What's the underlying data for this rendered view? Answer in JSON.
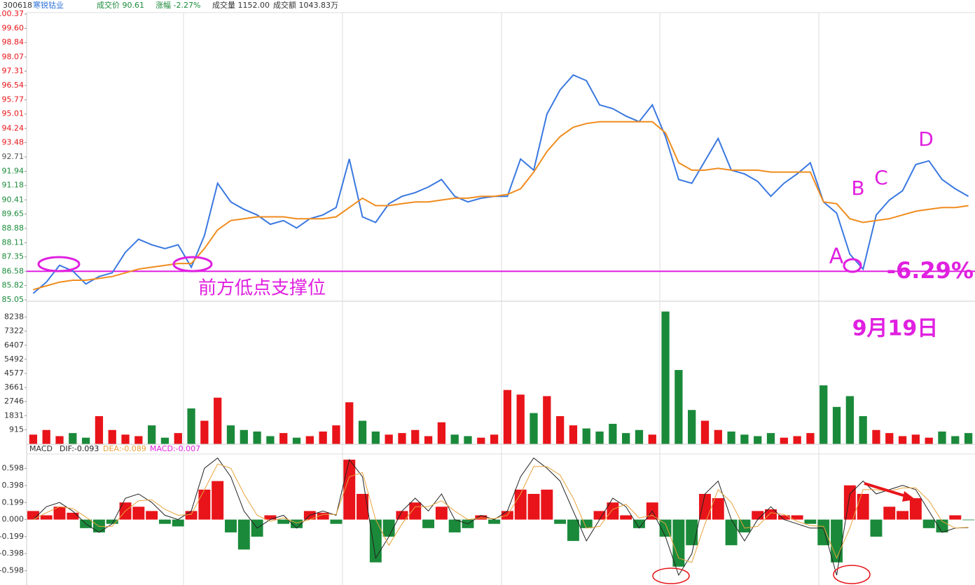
{
  "header": [
    "300618",
    "寒锐钴业",
    "成交价 90.61",
    "涨幅 -2.27%",
    "成交量 1152.00",
    "成交额 1043.83万"
  ],
  "chart_data": [
    {
      "type": "line",
      "ylim": [
        85.05,
        100.37
      ],
      "yticks": [
        100.37,
        {
          "value": 99.6,
          "label": "99.60"
        },
        98.84,
        98.07,
        97.31,
        96.54,
        95.77,
        95.01,
        94.24,
        93.48,
        92.71,
        91.94,
        91.18,
        90.41,
        89.65,
        88.88,
        88.11,
        87.35,
        86.58,
        85.82,
        85.05
      ],
      "support_level": 86.58,
      "annotations": [
        "前方低点支撑位",
        "A",
        "B",
        "C",
        "D",
        "-6.29%",
        "9月19日"
      ],
      "series": [
        {
          "color": "#3a78e0",
          "values": [
            85.4,
            86.0,
            86.9,
            86.6,
            85.9,
            86.3,
            86.5,
            87.6,
            88.3,
            88.0,
            87.8,
            88.0,
            86.8,
            88.5,
            91.3,
            90.3,
            89.9,
            89.6,
            89.1,
            89.3,
            88.9,
            89.4,
            89.6,
            90.0,
            92.6,
            89.5,
            89.2,
            90.2,
            90.6,
            90.8,
            91.1,
            91.5,
            90.6,
            90.3,
            90.5,
            90.6,
            90.6,
            92.6,
            92.0,
            95.0,
            96.3,
            97.1,
            96.8,
            95.5,
            95.3,
            94.9,
            94.6,
            95.5,
            93.8,
            91.5,
            91.3,
            92.5,
            93.7,
            92.0,
            91.8,
            91.4,
            90.6,
            91.3,
            91.8,
            92.4,
            90.3,
            89.7,
            87.5,
            86.7,
            89.6,
            90.4,
            90.9,
            92.3,
            92.5,
            91.5,
            91.0,
            90.6
          ]
        },
        {
          "color": "#f08c1e",
          "values": [
            85.6,
            85.8,
            86.0,
            86.1,
            86.1,
            86.2,
            86.3,
            86.5,
            86.7,
            86.8,
            86.9,
            87.0,
            87.0,
            87.8,
            88.8,
            89.3,
            89.4,
            89.5,
            89.5,
            89.5,
            89.4,
            89.4,
            89.4,
            89.5,
            90.0,
            90.5,
            90.1,
            90.1,
            90.2,
            90.3,
            90.3,
            90.4,
            90.5,
            90.5,
            90.6,
            90.6,
            90.7,
            91.0,
            91.9,
            93.0,
            93.8,
            94.3,
            94.5,
            94.6,
            94.6,
            94.6,
            94.6,
            94.6,
            94.0,
            92.4,
            92.0,
            92.0,
            92.1,
            92.0,
            92.0,
            92.0,
            91.9,
            91.9,
            91.9,
            91.9,
            90.3,
            90.2,
            89.4,
            89.2,
            89.3,
            89.4,
            89.6,
            89.8,
            89.9,
            90.0,
            90.0,
            90.1
          ]
        }
      ]
    },
    {
      "type": "bar",
      "ylim": [
        0,
        8812
      ],
      "yticks": [
        8238,
        7322,
        6407,
        5492,
        4577,
        3661,
        2746,
        1831,
        915
      ],
      "colors": [
        "#e8141a",
        "#1a8a3a"
      ],
      "values": [
        600,
        900,
        500,
        700,
        400,
        1800,
        900,
        600,
        500,
        1200,
        400,
        700,
        2300,
        1500,
        3000,
        1200,
        900,
        800,
        500,
        700,
        400,
        500,
        800,
        1200,
        2700,
        1500,
        800,
        600,
        700,
        900,
        500,
        1400,
        600,
        500,
        400,
        600,
        3500,
        3200,
        2000,
        3100,
        1800,
        1200,
        1000,
        800,
        1300,
        700,
        900,
        600,
        8600,
        4800,
        2200,
        1500,
        900,
        800,
        600,
        500,
        700,
        400,
        500,
        700,
        3800,
        2400,
        3100,
        1800,
        900,
        700,
        500,
        600,
        400,
        800,
        500,
        700
      ]
    },
    {
      "type": "macd",
      "title": "MACD",
      "ylim": [
        -0.74,
        0.75
      ],
      "yticks": [
        0.598,
        0.398,
        0.199,
        {
          "value": 0,
          "label": "0.000"
        },
        -0.199,
        -0.398,
        -0.598
      ],
      "bar_colors": [
        "#e8141a",
        "#1a8a3a"
      ],
      "series": [
        {
          "name": "DIF:-0.093",
          "color": "#222222",
          "values": [
            0.0,
            0.15,
            0.2,
            0.1,
            -0.05,
            -0.15,
            -0.05,
            0.25,
            0.3,
            0.2,
            0.05,
            0.0,
            0.1,
            0.6,
            0.72,
            0.5,
            0.1,
            -0.1,
            0.0,
            0.05,
            -0.1,
            0.05,
            0.1,
            0.05,
            0.7,
            0.5,
            -0.45,
            -0.2,
            0.1,
            0.25,
            0.1,
            0.3,
            0.0,
            -0.05,
            0.05,
            0.0,
            0.1,
            0.5,
            0.72,
            0.6,
            0.45,
            0.1,
            -0.25,
            0.0,
            0.25,
            0.15,
            -0.1,
            0.1,
            -0.2,
            -0.65,
            -0.4,
            0.3,
            0.45,
            0.0,
            -0.25,
            0.0,
            0.15,
            0.0,
            -0.05,
            -0.1,
            -0.1,
            -0.65,
            0.3,
            0.45,
            0.3,
            0.35,
            0.4,
            0.35,
            0.1,
            -0.15,
            -0.1,
            -0.093
          ]
        },
        {
          "name": "DEA:-0.089",
          "color": "#e8a23a",
          "values": [
            0.0,
            0.08,
            0.15,
            0.13,
            0.03,
            -0.08,
            -0.08,
            0.1,
            0.22,
            0.23,
            0.12,
            0.05,
            0.06,
            0.35,
            0.65,
            0.6,
            0.3,
            0.05,
            -0.02,
            0.02,
            -0.04,
            0.0,
            0.06,
            0.06,
            0.5,
            0.55,
            0.0,
            -0.3,
            -0.05,
            0.15,
            0.15,
            0.22,
            0.1,
            0.0,
            0.02,
            0.01,
            0.05,
            0.3,
            0.62,
            0.62,
            0.52,
            0.25,
            -0.1,
            -0.08,
            0.12,
            0.18,
            0.02,
            0.05,
            -0.05,
            -0.45,
            -0.5,
            -0.05,
            0.35,
            0.2,
            -0.1,
            -0.08,
            0.08,
            0.06,
            -0.02,
            -0.07,
            -0.08,
            -0.45,
            -0.1,
            0.35,
            0.35,
            0.33,
            0.37,
            0.37,
            0.22,
            -0.02,
            -0.1,
            -0.089
          ]
        },
        {
          "name": "MACD:-0.007",
          "color": "#e020e0",
          "values": [
            0.1,
            0.05,
            0.15,
            0.08,
            -0.1,
            -0.15,
            -0.05,
            0.2,
            0.15,
            0.1,
            -0.05,
            -0.08,
            0.1,
            0.35,
            0.45,
            -0.15,
            -0.35,
            -0.2,
            0.05,
            -0.05,
            -0.1,
            0.1,
            0.08,
            -0.05,
            0.7,
            0.3,
            -0.5,
            -0.2,
            0.1,
            0.2,
            -0.1,
            0.15,
            -0.15,
            -0.1,
            0.05,
            -0.05,
            0.1,
            0.35,
            0.3,
            0.35,
            -0.05,
            -0.25,
            -0.1,
            0.1,
            0.2,
            0.05,
            -0.1,
            0.2,
            -0.2,
            -0.55,
            -0.3,
            0.3,
            0.25,
            -0.3,
            -0.15,
            0.1,
            0.12,
            0.05,
            0.05,
            -0.05,
            -0.3,
            -0.5,
            0.4,
            0.3,
            -0.2,
            0.15,
            0.1,
            0.25,
            -0.1,
            -0.15,
            0.05,
            -0.007
          ]
        }
      ]
    }
  ]
}
